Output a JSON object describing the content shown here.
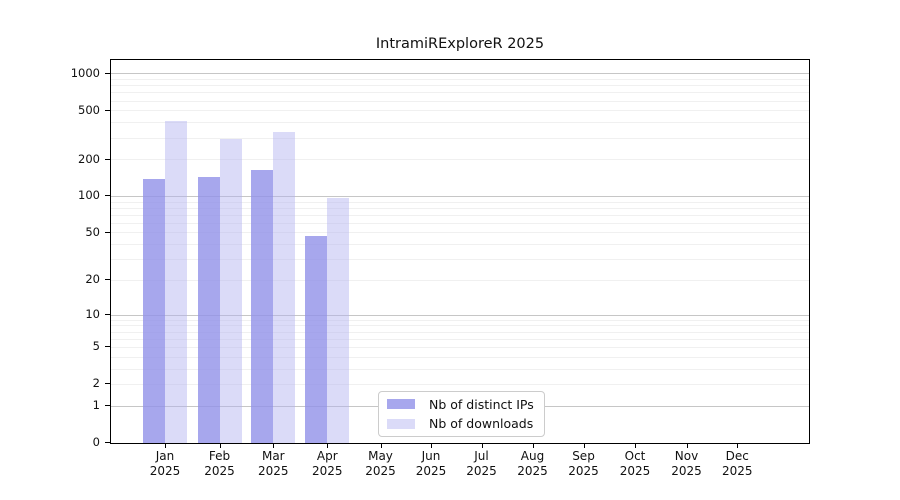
{
  "chart_data": {
    "type": "bar",
    "title": "IntramiRExploreR 2025",
    "categories": [
      "Jan",
      "Feb",
      "Mar",
      "Apr",
      "May",
      "Jun",
      "Jul",
      "Aug",
      "Sep",
      "Oct",
      "Nov",
      "Dec"
    ],
    "category_year": "2025",
    "series": [
      {
        "name": "Nb of distinct IPs",
        "color": "rgba(145,145,232,0.8)",
        "values": [
          137,
          142,
          163,
          47,
          0,
          0,
          0,
          0,
          0,
          0,
          0,
          0
        ]
      },
      {
        "name": "Nb of downloads",
        "color": "rgba(175,175,240,0.45)",
        "values": [
          410,
          292,
          331,
          96,
          0,
          0,
          0,
          0,
          0,
          0,
          0,
          0
        ]
      }
    ],
    "y_ticks": [
      1000,
      500,
      200,
      100,
      50,
      20,
      10,
      5,
      2,
      1,
      0
    ],
    "y_scale": "log10(value+1)",
    "ylim": [
      0,
      1300
    ],
    "grid": {
      "major": [
        1,
        10,
        100,
        1000
      ],
      "minor": [
        2,
        3,
        4,
        5,
        6,
        7,
        8,
        9,
        20,
        30,
        40,
        50,
        60,
        70,
        80,
        90,
        200,
        300,
        400,
        500,
        600,
        700,
        800,
        900
      ]
    },
    "legend_position": "inside-bottom-center"
  }
}
